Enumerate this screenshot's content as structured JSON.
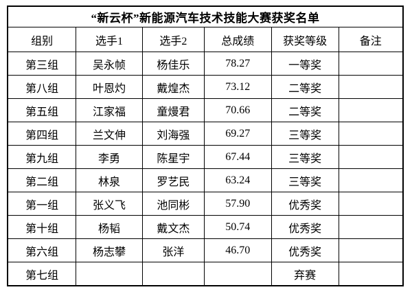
{
  "title": "“新云杯”新能源汽车技术技能大赛获奖名单",
  "table": {
    "headers": [
      "组别",
      "选手1",
      "选手2",
      "总成绩",
      "获奖等级",
      "备注"
    ],
    "rows": [
      {
        "group": "第三组",
        "player1": "吴永帧",
        "player2": "杨佳乐",
        "score": "78.27",
        "award": "一等奖",
        "note": ""
      },
      {
        "group": "第八组",
        "player1": "叶恩灼",
        "player2": "戴煌杰",
        "score": "73.12",
        "award": "二等奖",
        "note": ""
      },
      {
        "group": "第五组",
        "player1": "江家福",
        "player2": "童熳君",
        "score": "70.66",
        "award": "二等奖",
        "note": ""
      },
      {
        "group": "第四组",
        "player1": "兰文伸",
        "player2": "刘海强",
        "score": "69.27",
        "award": "三等奖",
        "note": ""
      },
      {
        "group": "第九组",
        "player1": "李勇",
        "player2": "陈星宇",
        "score": "67.44",
        "award": "三等奖",
        "note": ""
      },
      {
        "group": "第二组",
        "player1": "林泉",
        "player2": "罗艺民",
        "score": "63.24",
        "award": "三等奖",
        "note": ""
      },
      {
        "group": "第一组",
        "player1": "张义飞",
        "player2": "池同彬",
        "score": "57.90",
        "award": "优秀奖",
        "note": ""
      },
      {
        "group": "第十组",
        "player1": "杨韬",
        "player2": "戴文杰",
        "score": "50.74",
        "award": "优秀奖",
        "note": ""
      },
      {
        "group": "第六组",
        "player1": "杨志攀",
        "player2": "张洋",
        "score": "46.70",
        "award": "优秀奖",
        "note": ""
      },
      {
        "group": "第七组",
        "player1": "",
        "player2": "",
        "score": "",
        "award": "弃赛",
        "note": ""
      }
    ]
  }
}
